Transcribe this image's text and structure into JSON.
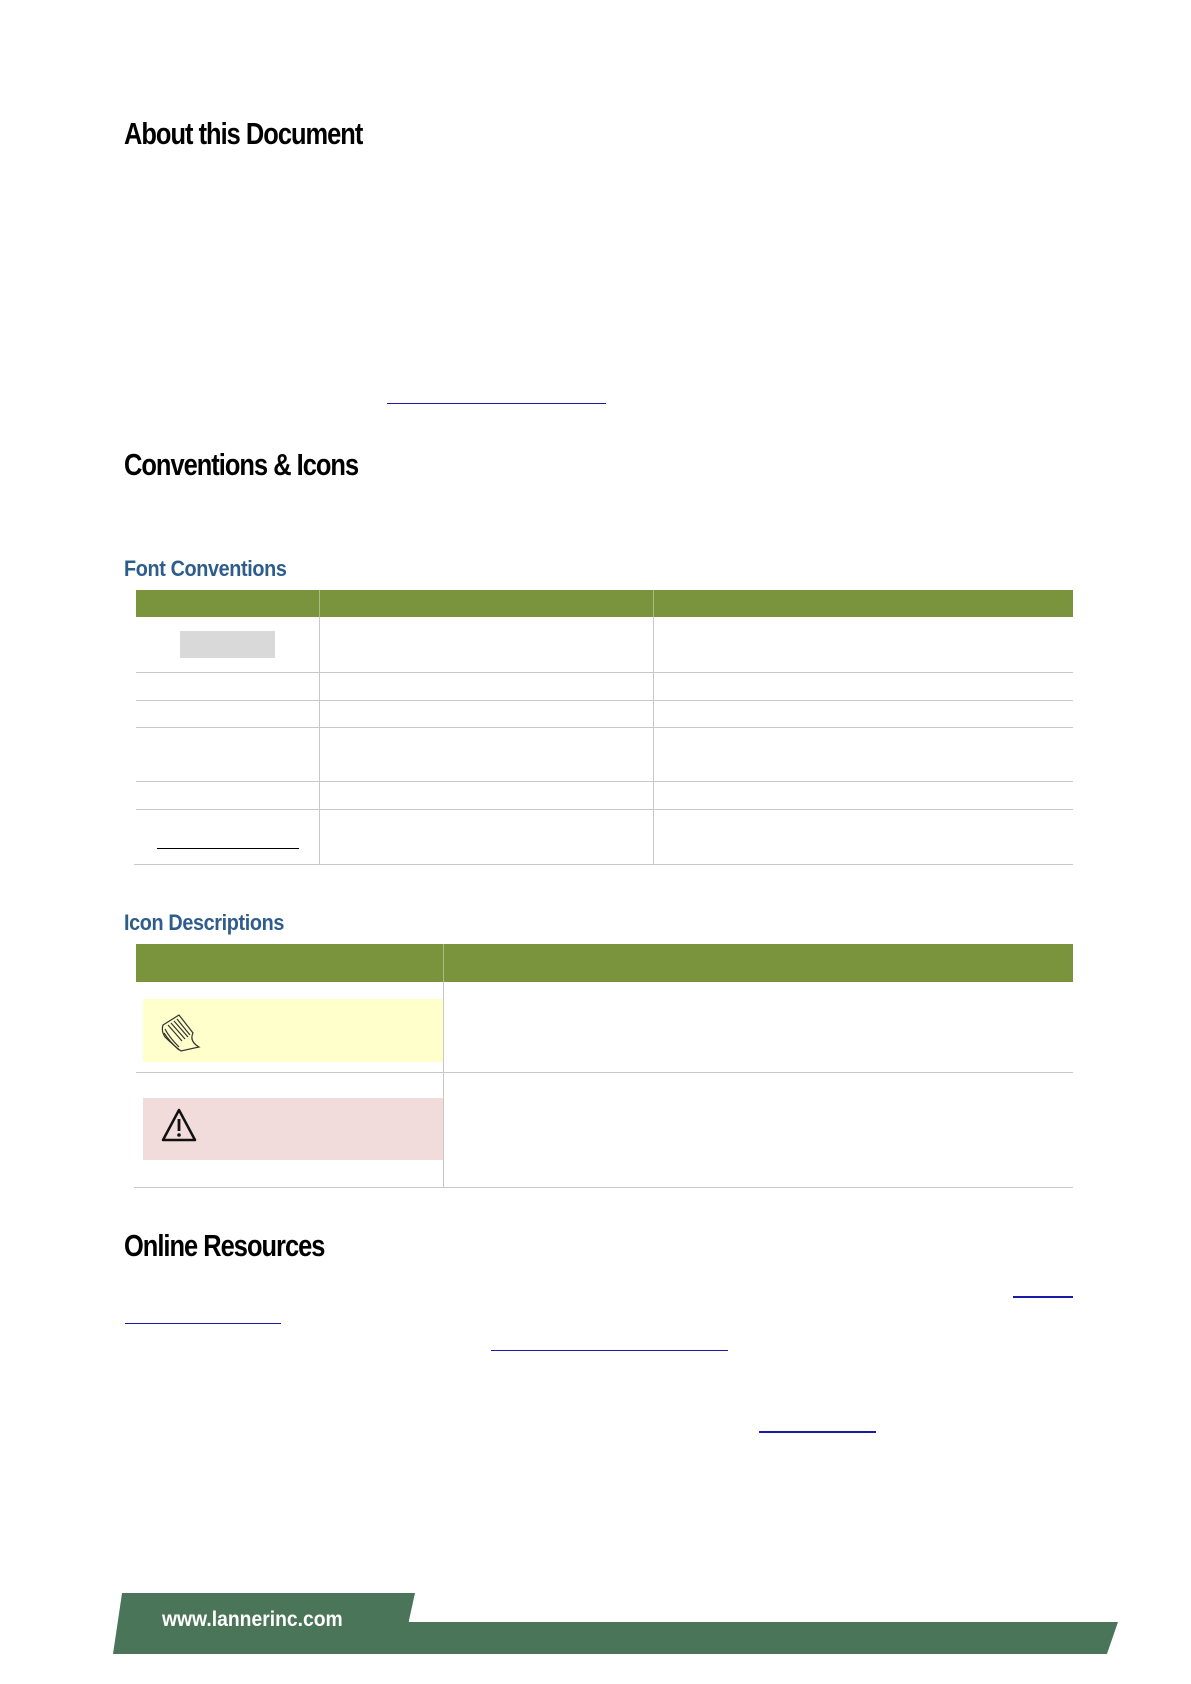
{
  "sections": {
    "about": {
      "title": "About this Document"
    },
    "conventions": {
      "title": "Conventions & Icons"
    },
    "font_conventions": {
      "title": "Font Conventions"
    },
    "icon_descriptions": {
      "title": "Icon Descriptions"
    },
    "online_resources": {
      "title": "Online Resources"
    }
  },
  "icons": {
    "note": "note-icon",
    "warning": "warning-icon"
  },
  "colors": {
    "table_header": "#7a933d",
    "heading_blue": "#2e5d8c",
    "note_bg": "#ffffcc",
    "warning_bg": "#f2dcdb",
    "footer": "#4b7559",
    "link": "#1a1aa6"
  },
  "footer": {
    "url": "www.lannerinc.com"
  }
}
